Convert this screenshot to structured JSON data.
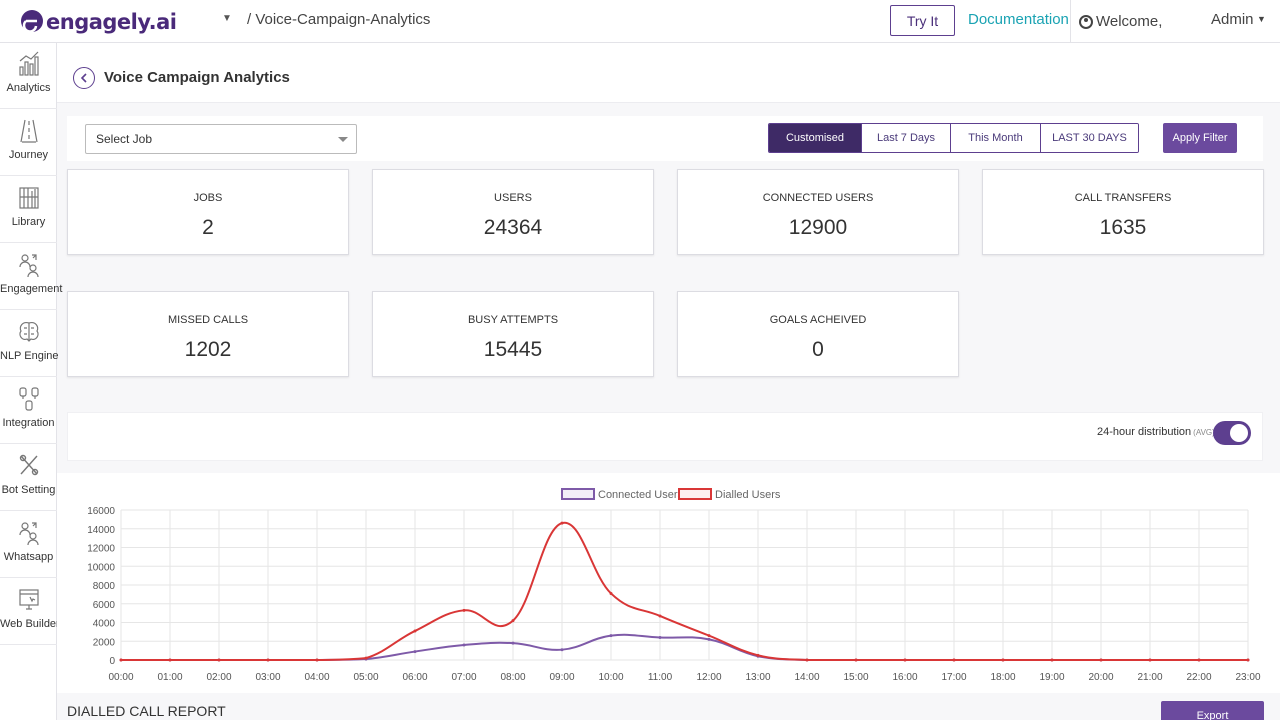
{
  "brand": {
    "logo_text": "engagely.ai",
    "accent": "#5d3f8f",
    "dark_accent": "#3e2a66",
    "link_color": "#1aa3b3"
  },
  "header": {
    "breadcrumb": "/ Voice-Campaign-Analytics",
    "try_it": "Try It",
    "documentation": "Documentation",
    "welcome": "Welcome,",
    "admin": "Admin"
  },
  "sidebar": {
    "items": [
      {
        "label": "Analytics",
        "icon": "analytics-icon"
      },
      {
        "label": "Journey",
        "icon": "journey-icon"
      },
      {
        "label": "Library",
        "icon": "library-icon"
      },
      {
        "label": "Engagement",
        "icon": "engagement-icon"
      },
      {
        "label": "NLP Engine",
        "icon": "brain-icon"
      },
      {
        "label": "Integration",
        "icon": "integration-icon"
      },
      {
        "label": "Bot Setting",
        "icon": "tools-icon"
      },
      {
        "label": "Whatsapp",
        "icon": "whatsapp-icon"
      },
      {
        "label": "Web Builder",
        "icon": "web-builder-icon"
      }
    ]
  },
  "page": {
    "title": "Voice Campaign Analytics"
  },
  "filters": {
    "select_job_placeholder": "Select Job",
    "ranges": [
      "Customised",
      "Last 7 Days",
      "This Month",
      "LAST 30 DAYS"
    ],
    "active_range": "Customised",
    "apply": "Apply Filter"
  },
  "stats": [
    {
      "label": "JOBS",
      "value": "2"
    },
    {
      "label": "USERS",
      "value": "24364"
    },
    {
      "label": "CONNECTED USERS",
      "value": "12900"
    },
    {
      "label": "CALL TRANSFERS",
      "value": "1635"
    },
    {
      "label": "MISSED CALLS",
      "value": "1202"
    },
    {
      "label": "BUSY ATTEMPTS",
      "value": "15445"
    },
    {
      "label": "GOALS ACHEIVED",
      "value": "0"
    }
  ],
  "distribution": {
    "label": "24-hour distribution",
    "avg": "(AVG)",
    "enabled": true
  },
  "chart_data": {
    "type": "line",
    "categories": [
      "00:00",
      "01:00",
      "02:00",
      "03:00",
      "04:00",
      "05:00",
      "06:00",
      "07:00",
      "08:00",
      "09:00",
      "10:00",
      "11:00",
      "12:00",
      "13:00",
      "14:00",
      "15:00",
      "16:00",
      "17:00",
      "18:00",
      "19:00",
      "20:00",
      "21:00",
      "22:00",
      "23:00"
    ],
    "series": [
      {
        "name": "Connected Users",
        "color": "#7e5aa8",
        "values": [
          0,
          0,
          0,
          0,
          0,
          100,
          900,
          1600,
          1800,
          1100,
          2600,
          2400,
          2200,
          400,
          0,
          0,
          0,
          0,
          0,
          0,
          0,
          0,
          0,
          0
        ]
      },
      {
        "name": "Dialled Users",
        "color": "#d93636",
        "values": [
          0,
          0,
          0,
          0,
          0,
          200,
          3100,
          5300,
          4200,
          14600,
          7100,
          4700,
          2600,
          500,
          0,
          0,
          0,
          0,
          0,
          0,
          0,
          0,
          0,
          0
        ]
      }
    ],
    "yticks": [
      0,
      2000,
      4000,
      6000,
      8000,
      10000,
      12000,
      14000,
      16000
    ],
    "ylim": [
      0,
      16000
    ],
    "grid": true,
    "legend": "top-center"
  },
  "report": {
    "title": "DIALLED CALL REPORT",
    "export": "Export"
  }
}
